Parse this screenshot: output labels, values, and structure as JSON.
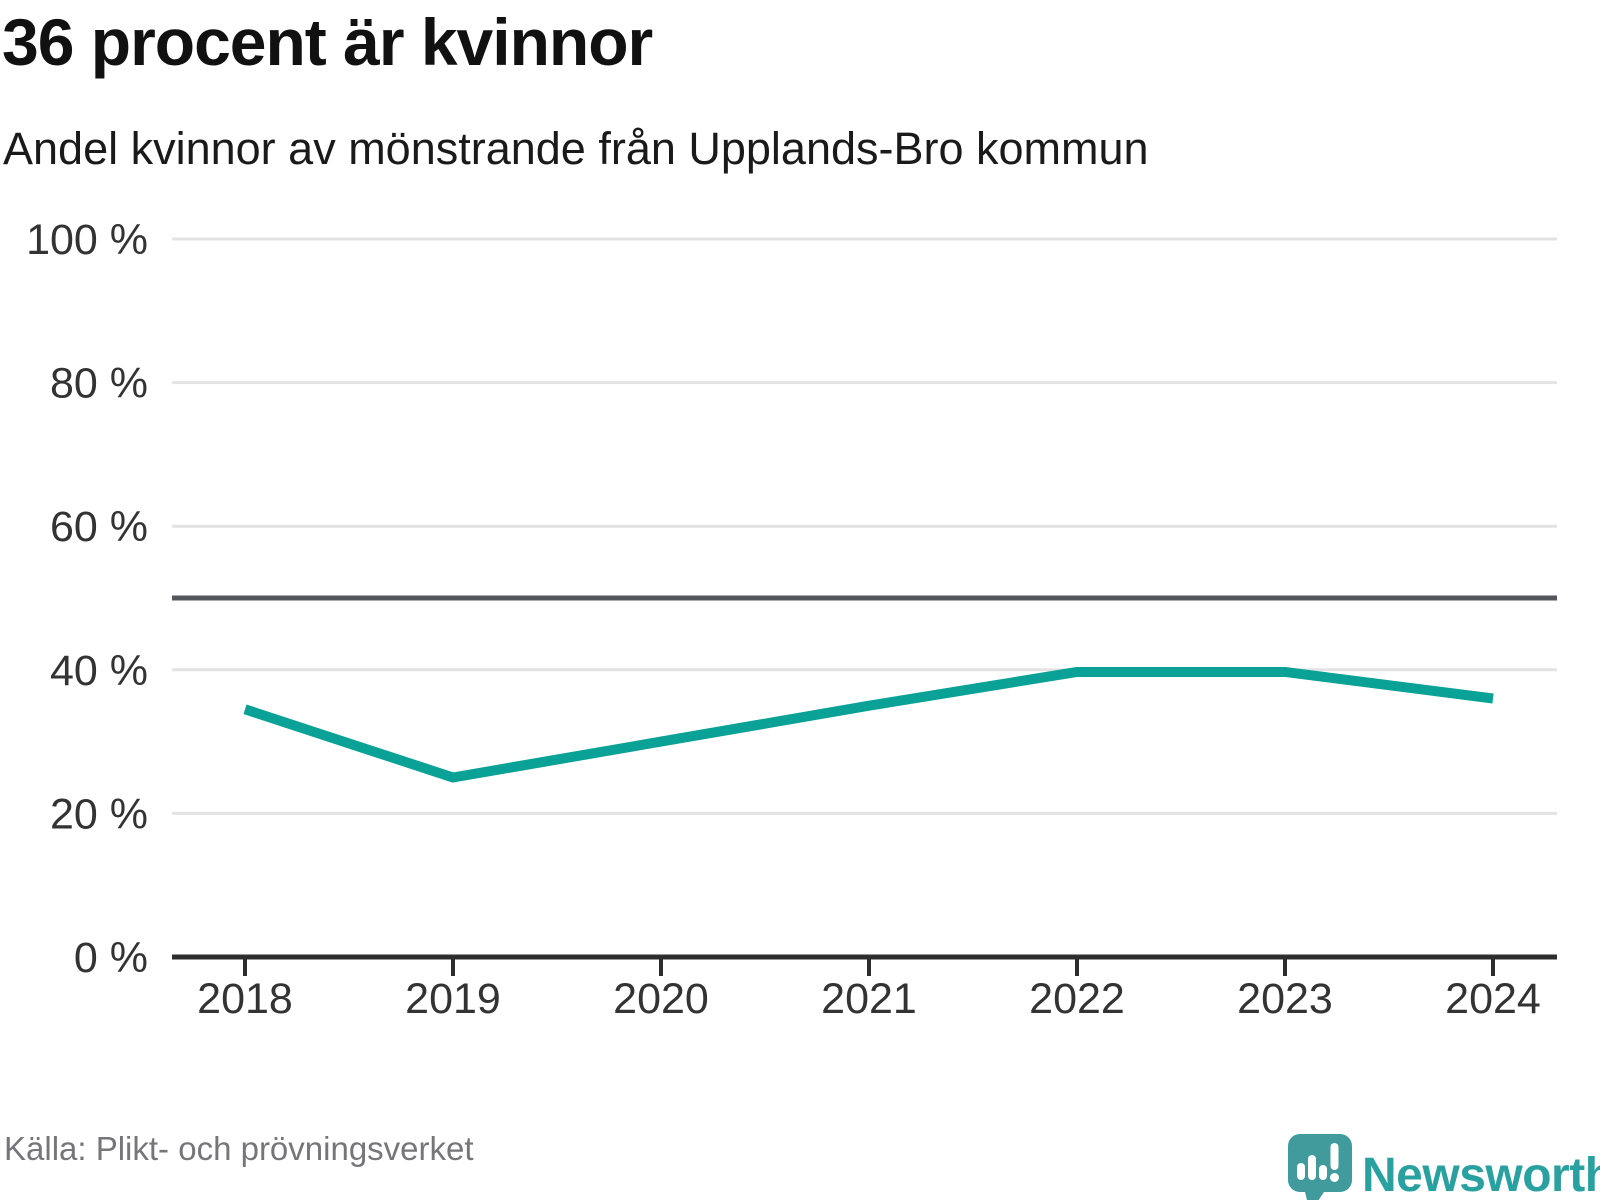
{
  "header": {
    "title": "36 procent är kvinnor",
    "subtitle": "Andel kvinnor av mönstrande från Upplands-Bro kommun"
  },
  "footer": {
    "source": "Källa: Plikt- och prövningsverket",
    "logo_text": "Newsworthy"
  },
  "colors": {
    "line": "#0aa296",
    "gridline": "#e3e3e3",
    "reference_line": "#55555d",
    "axis": "#2d2d2d",
    "tick_label": "#333333",
    "logo_mark": "#419b9c",
    "logo_text": "#2aa1a1"
  },
  "chart_data": {
    "type": "line",
    "title": "36 procent är kvinnor",
    "subtitle": "Andel kvinnor av mönstrande från Upplands-Bro kommun",
    "x": [
      2018,
      2019,
      2020,
      2021,
      2022,
      2023,
      2024
    ],
    "x_tick_labels": [
      "2018",
      "2019",
      "2020",
      "2021",
      "2022",
      "2023",
      "2024"
    ],
    "series": [
      {
        "name": "Andel kvinnor av mönstrande",
        "values": [
          34.5,
          25,
          30,
          35,
          39.7,
          39.7,
          36
        ]
      }
    ],
    "ylim": [
      0,
      100
    ],
    "y_ticks": [
      0,
      20,
      40,
      60,
      80,
      100
    ],
    "y_tick_labels": [
      "0 %",
      "20 %",
      "40 %",
      "60 %",
      "80 %",
      "100 %"
    ],
    "reference_line": 50,
    "grid": true,
    "legend": false,
    "xlabel": "",
    "ylabel": ""
  }
}
